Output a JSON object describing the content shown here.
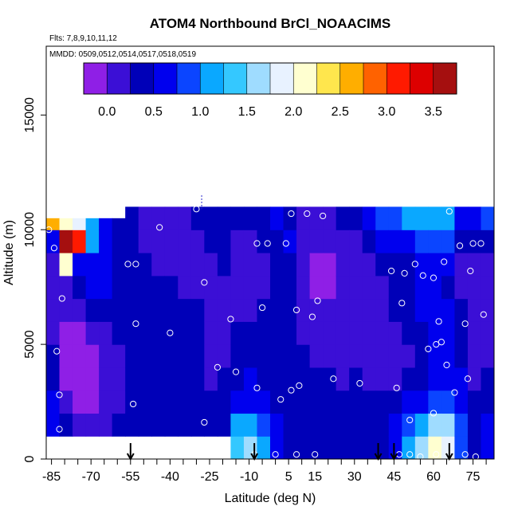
{
  "chart_data": {
    "type": "heatmap",
    "title": "ATOM4 Northbound BrCl_NOAACIMS",
    "subtitle_flights": "Flts: 7,8,9,10,11,12",
    "subtitle_dates": "MMDD: 0509,0512,0514,0517,0518,0519",
    "xlabel": "Latitude (deg N)",
    "ylabel": "Altitude (m)",
    "xlim": [
      -87,
      83
    ],
    "ylim": [
      0,
      18000
    ],
    "x_ticks": [
      -85,
      -70,
      -55,
      -40,
      -25,
      -10,
      5,
      15,
      30,
      45,
      60,
      75
    ],
    "y_ticks": [
      0,
      5000,
      10000,
      15000
    ],
    "colorbar": {
      "range": [
        -0.25,
        3.75
      ],
      "ticks": [
        "0.0",
        "0.5",
        "1.0",
        "1.5",
        "2.0",
        "2.5",
        "3.0",
        "3.5"
      ],
      "tick_values": [
        0,
        0.5,
        1.0,
        1.5,
        2.0,
        2.5,
        3.0,
        3.5
      ],
      "colors": [
        "#8f1fe6",
        "#3b0fd6",
        "#0000b8",
        "#0000ee",
        "#0b45ff",
        "#0aa8ff",
        "#34c8ff",
        "#9fdcff",
        "#e8f2ff",
        "#ffffd0",
        "#ffe64d",
        "#ffae00",
        "#ff6200",
        "#ff1a00",
        "#dd0000",
        "#a50f0f"
      ]
    },
    "grid": {
      "lat_start": -87,
      "lat_step": 5,
      "alt_start": 0,
      "alt_step": 1000,
      "columns": [
        [
          0.5,
          0.5,
          0.5,
          0.4,
          0.3,
          0.2,
          0.1,
          0.1,
          0.2,
          0.5,
          2.5,
          1.0
        ],
        [
          0.5,
          0.3,
          0.0,
          -0.1,
          -0.1,
          -0.1,
          0.0,
          0.2,
          2.0,
          3.5,
          2.2,
          0.8
        ],
        [
          0.4,
          0.2,
          -0.1,
          -0.2,
          -0.2,
          -0.1,
          0.2,
          0.3,
          0.5,
          3.0,
          1.8,
          0.9
        ],
        [
          0.3,
          0.1,
          -0.1,
          -0.2,
          -0.1,
          0.1,
          0.4,
          0.5,
          0.6,
          1.2,
          1.0,
          0.8
        ],
        [
          0.4,
          0.2,
          0.0,
          0.0,
          0.1,
          0.2,
          0.4,
          0.5,
          0.5,
          0.6,
          0.6,
          0.8
        ],
        [
          0.4,
          0.3,
          0.2,
          0.2,
          0.2,
          0.3,
          0.4,
          0.4,
          0.4,
          0.4,
          0.4,
          0.7
        ],
        [
          0.5,
          0.4,
          0.3,
          0.3,
          0.3,
          0.3,
          0.4,
          0.4,
          0.3,
          0.3,
          0.3,
          0.7
        ],
        [
          0.5,
          0.4,
          0.3,
          0.3,
          0.3,
          0.3,
          0.4,
          0.4,
          0.3,
          0.2,
          0.2,
          0.8
        ],
        [
          0.5,
          0.4,
          0.3,
          0.3,
          0.3,
          0.3,
          0.3,
          0.3,
          0.2,
          0.2,
          0.2,
          0.9
        ],
        [
          0.5,
          0.4,
          0.3,
          0.3,
          0.3,
          0.3,
          0.3,
          0.3,
          0.2,
          0.1,
          0.2,
          0.8
        ],
        [
          0.5,
          0.4,
          0.3,
          0.3,
          0.3,
          0.3,
          0.3,
          0.2,
          0.1,
          0.1,
          0.2,
          0.7
        ],
        [
          0.4,
          0.4,
          0.3,
          0.3,
          0.3,
          0.3,
          0.3,
          0.2,
          0.1,
          0.2,
          0.3,
          0.6
        ],
        [
          0.4,
          0.3,
          0.3,
          0.2,
          0.2,
          0.2,
          0.2,
          0.2,
          0.2,
          0.3,
          0.4,
          0.6
        ],
        [
          0.5,
          0.4,
          0.3,
          0.3,
          0.2,
          0.2,
          0.2,
          0.2,
          0.3,
          0.3,
          0.3,
          0.5
        ],
        [
          1.4,
          1.0,
          0.6,
          0.4,
          0.3,
          0.3,
          0.2,
          0.2,
          0.2,
          0.2,
          0.3,
          0.5
        ],
        [
          1.6,
          1.2,
          0.7,
          0.5,
          0.3,
          0.3,
          0.2,
          0.2,
          0.2,
          0.2,
          0.3,
          0.5
        ],
        [
          1.0,
          0.8,
          0.5,
          0.4,
          0.3,
          0.3,
          0.3,
          0.2,
          0.2,
          0.3,
          0.4,
          0.6
        ],
        [
          0.6,
          0.5,
          0.4,
          0.4,
          0.3,
          0.3,
          0.3,
          0.3,
          0.4,
          0.4,
          0.5,
          0.7
        ],
        [
          0.4,
          0.4,
          0.4,
          0.3,
          0.3,
          0.3,
          0.3,
          0.3,
          0.4,
          0.5,
          0.4,
          0.4
        ],
        [
          0.3,
          0.4,
          0.4,
          0.3,
          0.3,
          0.2,
          0.1,
          0.0,
          0.0,
          0.1,
          0.2,
          0.4
        ],
        [
          0.4,
          0.4,
          0.3,
          0.3,
          0.2,
          0.1,
          0.0,
          -0.1,
          -0.1,
          0.0,
          0.2,
          0.4
        ],
        [
          0.4,
          0.4,
          0.3,
          0.3,
          0.2,
          0.1,
          0.0,
          -0.1,
          -0.1,
          0.0,
          0.2,
          0.5
        ],
        [
          0.4,
          0.4,
          0.3,
          0.2,
          0.1,
          0.0,
          0.0,
          0.0,
          0.0,
          0.1,
          0.3,
          0.7
        ],
        [
          0.4,
          0.4,
          0.3,
          0.3,
          0.2,
          0.1,
          0.1,
          0.1,
          0.1,
          0.2,
          0.4,
          0.9
        ],
        [
          0.4,
          0.4,
          0.3,
          0.2,
          0.1,
          0.1,
          0.1,
          0.1,
          0.1,
          0.3,
          0.6,
          1.0
        ],
        [
          0.4,
          0.4,
          0.4,
          0.2,
          0.1,
          0.1,
          0.2,
          0.2,
          0.3,
          0.5,
          0.8,
          1.2
        ],
        [
          0.6,
          0.5,
          0.4,
          0.2,
          0.1,
          0.2,
          0.3,
          0.3,
          0.4,
          0.6,
          0.9,
          1.3
        ],
        [
          1.0,
          0.8,
          0.5,
          0.3,
          0.2,
          0.3,
          0.3,
          0.3,
          0.4,
          0.6,
          1.0,
          1.4
        ],
        [
          1.5,
          1.1,
          0.6,
          0.3,
          0.3,
          0.4,
          0.5,
          0.5,
          0.6,
          0.8,
          1.1,
          1.6
        ],
        [
          2.1,
          1.6,
          0.8,
          0.5,
          0.5,
          0.6,
          0.6,
          0.6,
          0.7,
          0.9,
          1.2,
          1.7
        ],
        [
          1.8,
          1.5,
          0.9,
          0.6,
          0.5,
          0.5,
          0.5,
          0.4,
          0.5,
          0.8,
          1.2,
          1.6
        ],
        [
          0.9,
          0.8,
          0.6,
          0.5,
          0.4,
          0.3,
          0.3,
          0.2,
          0.2,
          0.3,
          0.7,
          1.4
        ],
        [
          0.4,
          0.3,
          0.3,
          0.2,
          0.2,
          0.2,
          0.1,
          0.1,
          0.1,
          0.3,
          0.7,
          1.3
        ],
        [
          0.5,
          0.5,
          0.3,
          0.3,
          0.2,
          0.2,
          0.2,
          0.2,
          0.2,
          0.4,
          0.8,
          1.2
        ],
        [
          2.0,
          1.2,
          0.7,
          0.7,
          0.6,
          0.4,
          0.3,
          0.5,
          1.0,
          1.6,
          1.9,
          2.0
        ]
      ]
    },
    "max_altitude_by_column": [
      10500,
      10500,
      10500,
      10500,
      10500,
      10500,
      11000,
      11000,
      11000,
      11000,
      11000,
      11000,
      11000,
      11000,
      11000,
      11000,
      11000,
      11000,
      11000,
      11000,
      11000,
      11000,
      11000,
      11000,
      11000,
      11000,
      11000,
      11000,
      11000,
      11000,
      11000,
      11000,
      11000,
      11000,
      10500
    ],
    "min_altitude_by_column": [
      1000,
      1000,
      1000,
      1000,
      1000,
      1000,
      1000,
      1000,
      1000,
      1000,
      1000,
      1000,
      1000,
      1000,
      0,
      0,
      0,
      0,
      0,
      0,
      0,
      0,
      0,
      0,
      0,
      0,
      0,
      0,
      0,
      0,
      0,
      0,
      0,
      0,
      0
    ],
    "observations": [
      {
        "lat": -86,
        "alt": 10000
      },
      {
        "lat": -84,
        "alt": 9200
      },
      {
        "lat": -83,
        "alt": 4700
      },
      {
        "lat": -82,
        "alt": 2800
      },
      {
        "lat": -82,
        "alt": 1300
      },
      {
        "lat": -81,
        "alt": 7000
      },
      {
        "lat": -73,
        "alt": 10700
      },
      {
        "lat": -60,
        "alt": 700
      },
      {
        "lat": -54,
        "alt": 2400
      },
      {
        "lat": -56,
        "alt": 8500
      },
      {
        "lat": -53,
        "alt": 8500
      },
      {
        "lat": -53,
        "alt": 5900
      },
      {
        "lat": -44,
        "alt": 10100
      },
      {
        "lat": -40,
        "alt": 5500
      },
      {
        "lat": -30,
        "alt": 10900
      },
      {
        "lat": -27,
        "alt": 7700
      },
      {
        "lat": -27,
        "alt": 1600
      },
      {
        "lat": -22,
        "alt": 4000
      },
      {
        "lat": -17,
        "alt": 6100
      },
      {
        "lat": -15,
        "alt": 3800
      },
      {
        "lat": -7,
        "alt": 3100
      },
      {
        "lat": -7,
        "alt": 9400
      },
      {
        "lat": -5,
        "alt": 6600
      },
      {
        "lat": -3,
        "alt": 9400
      },
      {
        "lat": 2,
        "alt": 2600
      },
      {
        "lat": 4,
        "alt": 9400
      },
      {
        "lat": 6,
        "alt": 10700
      },
      {
        "lat": 6,
        "alt": 3000
      },
      {
        "lat": 8,
        "alt": 6500
      },
      {
        "lat": 9,
        "alt": 3200
      },
      {
        "lat": 12,
        "alt": 10700
      },
      {
        "lat": 14,
        "alt": 6200
      },
      {
        "lat": 16,
        "alt": 6900
      },
      {
        "lat": 18,
        "alt": 10600
      },
      {
        "lat": 22,
        "alt": 3500
      },
      {
        "lat": 32,
        "alt": 3300
      },
      {
        "lat": 44,
        "alt": 8200
      },
      {
        "lat": 46,
        "alt": 3100
      },
      {
        "lat": 48,
        "alt": 6800
      },
      {
        "lat": 49,
        "alt": 8100
      },
      {
        "lat": 51,
        "alt": 1700
      },
      {
        "lat": 53,
        "alt": 8500
      },
      {
        "lat": 56,
        "alt": 8000
      },
      {
        "lat": 58,
        "alt": 4800
      },
      {
        "lat": 60,
        "alt": 7900
      },
      {
        "lat": 61,
        "alt": 5000
      },
      {
        "lat": 62,
        "alt": 6000
      },
      {
        "lat": 63,
        "alt": 5100
      },
      {
        "lat": 64,
        "alt": 8600
      },
      {
        "lat": 65,
        "alt": 4100
      },
      {
        "lat": 66,
        "alt": 10800
      },
      {
        "lat": 68,
        "alt": 2900
      },
      {
        "lat": 70,
        "alt": 9300
      },
      {
        "lat": 72,
        "alt": 5900
      },
      {
        "lat": 73,
        "alt": 3500
      },
      {
        "lat": 74,
        "alt": 8200
      },
      {
        "lat": 75,
        "alt": 9400
      },
      {
        "lat": 78,
        "alt": 9400
      },
      {
        "lat": 79,
        "alt": 6300
      },
      {
        "lat": 60,
        "alt": 2000
      },
      {
        "lat": -78,
        "alt": 200
      },
      {
        "lat": -62,
        "alt": 200
      },
      {
        "lat": -49,
        "alt": 200
      },
      {
        "lat": -36,
        "alt": 200
      },
      {
        "lat": -27,
        "alt": 200
      },
      {
        "lat": -20,
        "alt": 200
      },
      {
        "lat": -8,
        "alt": 200
      },
      {
        "lat": 0,
        "alt": 200
      },
      {
        "lat": 8,
        "alt": 200
      },
      {
        "lat": 15,
        "alt": 200
      },
      {
        "lat": 47,
        "alt": 200
      },
      {
        "lat": 51,
        "alt": 200
      },
      {
        "lat": 55,
        "alt": 100
      },
      {
        "lat": 61,
        "alt": 200
      },
      {
        "lat": 66,
        "alt": 200
      },
      {
        "lat": 72,
        "alt": 200
      },
      {
        "lat": 76,
        "alt": 100
      }
    ],
    "arrows_lat": [
      -55,
      -8,
      39,
      45,
      66
    ],
    "vertical_dash_lat": -28
  }
}
